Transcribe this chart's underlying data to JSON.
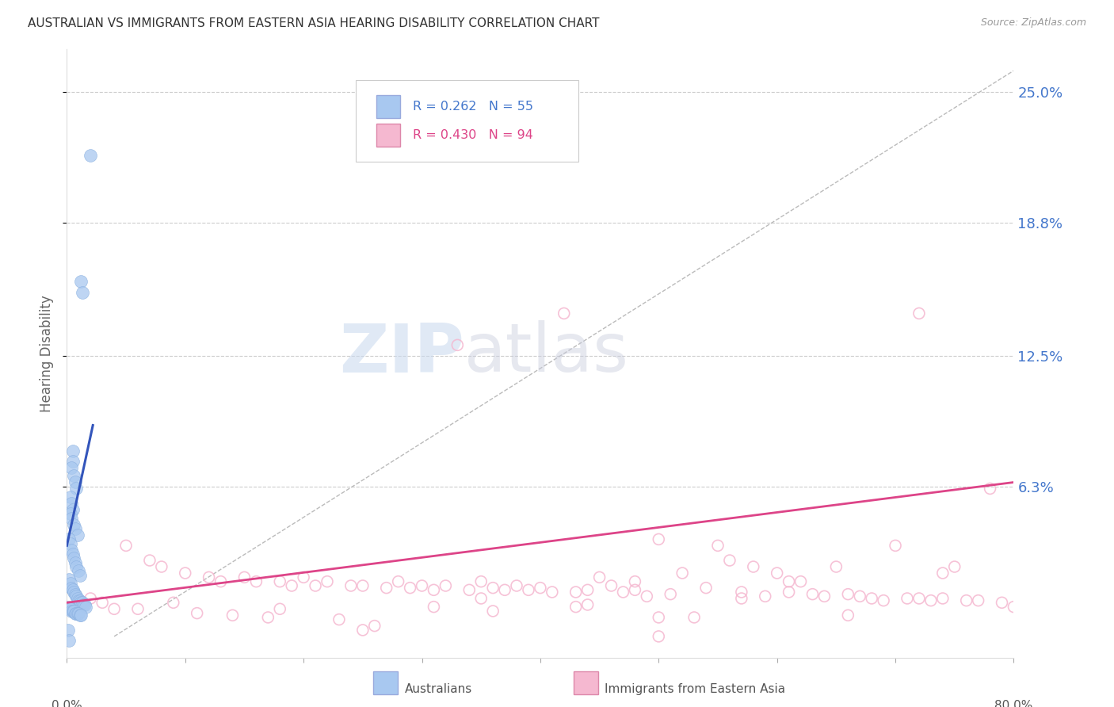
{
  "title": "AUSTRALIAN VS IMMIGRANTS FROM EASTERN ASIA HEARING DISABILITY CORRELATION CHART",
  "source": "Source: ZipAtlas.com",
  "ylabel": "Hearing Disability",
  "ytick_labels": [
    "25.0%",
    "18.8%",
    "12.5%",
    "6.3%"
  ],
  "ytick_values": [
    0.25,
    0.188,
    0.125,
    0.063
  ],
  "xlim": [
    0.0,
    0.8
  ],
  "ylim": [
    -0.018,
    0.27
  ],
  "legend_blue_r": "R = 0.262",
  "legend_blue_n": "N = 55",
  "legend_pink_r": "R = 0.430",
  "legend_pink_n": "N = 94",
  "watermark_zip": "ZIP",
  "watermark_atlas": "atlas",
  "blue_color": "#a8c8f0",
  "pink_color": "#f5b8d0",
  "blue_line_color": "#3355bb",
  "pink_line_color": "#dd4488",
  "diag_line_color": "#bbbbbb",
  "background_color": "#ffffff",
  "title_color": "#333333",
  "ytick_color": "#4477cc",
  "blue_scatter_x": [
    0.02,
    0.012,
    0.013,
    0.005,
    0.005,
    0.004,
    0.006,
    0.007,
    0.008,
    0.003,
    0.004,
    0.005,
    0.003,
    0.004,
    0.006,
    0.007,
    0.009,
    0.002,
    0.003,
    0.004,
    0.005,
    0.006,
    0.007,
    0.008,
    0.01,
    0.011,
    0.002,
    0.003,
    0.004,
    0.005,
    0.006,
    0.007,
    0.008,
    0.009,
    0.01,
    0.011,
    0.012,
    0.013,
    0.014,
    0.015,
    0.016,
    0.001,
    0.002,
    0.003,
    0.004,
    0.005,
    0.006,
    0.007,
    0.008,
    0.009,
    0.01,
    0.011,
    0.012,
    0.001,
    0.002
  ],
  "blue_scatter_y": [
    0.22,
    0.16,
    0.155,
    0.08,
    0.075,
    0.072,
    0.068,
    0.065,
    0.062,
    0.058,
    0.055,
    0.052,
    0.05,
    0.048,
    0.045,
    0.043,
    0.04,
    0.038,
    0.036,
    0.033,
    0.031,
    0.029,
    0.027,
    0.025,
    0.023,
    0.021,
    0.019,
    0.017,
    0.015,
    0.014,
    0.013,
    0.012,
    0.011,
    0.01,
    0.009,
    0.009,
    0.008,
    0.008,
    0.007,
    0.007,
    0.006,
    0.006,
    0.005,
    0.005,
    0.004,
    0.004,
    0.004,
    0.003,
    0.003,
    0.003,
    0.003,
    0.002,
    0.002,
    -0.005,
    -0.01
  ],
  "pink_scatter_x": [
    0.33,
    0.42,
    0.72,
    0.78,
    0.05,
    0.07,
    0.08,
    0.1,
    0.12,
    0.13,
    0.15,
    0.16,
    0.18,
    0.19,
    0.2,
    0.21,
    0.22,
    0.24,
    0.25,
    0.27,
    0.28,
    0.29,
    0.3,
    0.31,
    0.32,
    0.34,
    0.35,
    0.36,
    0.37,
    0.38,
    0.39,
    0.4,
    0.41,
    0.43,
    0.44,
    0.45,
    0.46,
    0.47,
    0.48,
    0.49,
    0.5,
    0.51,
    0.52,
    0.54,
    0.55,
    0.56,
    0.57,
    0.58,
    0.59,
    0.6,
    0.61,
    0.62,
    0.63,
    0.64,
    0.65,
    0.66,
    0.67,
    0.68,
    0.69,
    0.7,
    0.71,
    0.72,
    0.73,
    0.74,
    0.75,
    0.76,
    0.77,
    0.79,
    0.8,
    0.02,
    0.03,
    0.04,
    0.06,
    0.09,
    0.11,
    0.14,
    0.17,
    0.23,
    0.26,
    0.36,
    0.43,
    0.48,
    0.53,
    0.61,
    0.74,
    0.18,
    0.31,
    0.44,
    0.5,
    0.57,
    0.66,
    0.25,
    0.5,
    0.35
  ],
  "pink_scatter_y": [
    0.13,
    0.145,
    0.145,
    0.062,
    0.035,
    0.028,
    0.025,
    0.022,
    0.02,
    0.018,
    0.02,
    0.018,
    0.018,
    0.016,
    0.02,
    0.016,
    0.018,
    0.016,
    0.016,
    0.015,
    0.018,
    0.015,
    0.016,
    0.014,
    0.016,
    0.014,
    0.018,
    0.015,
    0.014,
    0.016,
    0.014,
    0.015,
    0.013,
    0.013,
    0.014,
    0.02,
    0.016,
    0.013,
    0.018,
    0.011,
    0.038,
    0.012,
    0.022,
    0.015,
    0.035,
    0.028,
    0.013,
    0.025,
    0.011,
    0.022,
    0.013,
    0.018,
    0.012,
    0.011,
    0.025,
    0.012,
    0.011,
    0.01,
    0.009,
    0.035,
    0.01,
    0.01,
    0.009,
    0.01,
    0.025,
    0.009,
    0.009,
    0.008,
    0.006,
    0.01,
    0.008,
    0.005,
    0.005,
    0.008,
    0.003,
    0.002,
    0.001,
    0.0,
    -0.003,
    0.004,
    0.006,
    0.014,
    0.001,
    0.018,
    0.022,
    0.005,
    0.006,
    0.007,
    -0.008,
    0.01,
    0.002,
    -0.005,
    0.001,
    0.01
  ],
  "blue_line_x": [
    0.0,
    0.022
  ],
  "blue_line_y_start": 0.035,
  "blue_line_y_end": 0.092,
  "pink_line_x": [
    0.0,
    0.8
  ],
  "pink_line_y_start": 0.008,
  "pink_line_y_end": 0.065
}
